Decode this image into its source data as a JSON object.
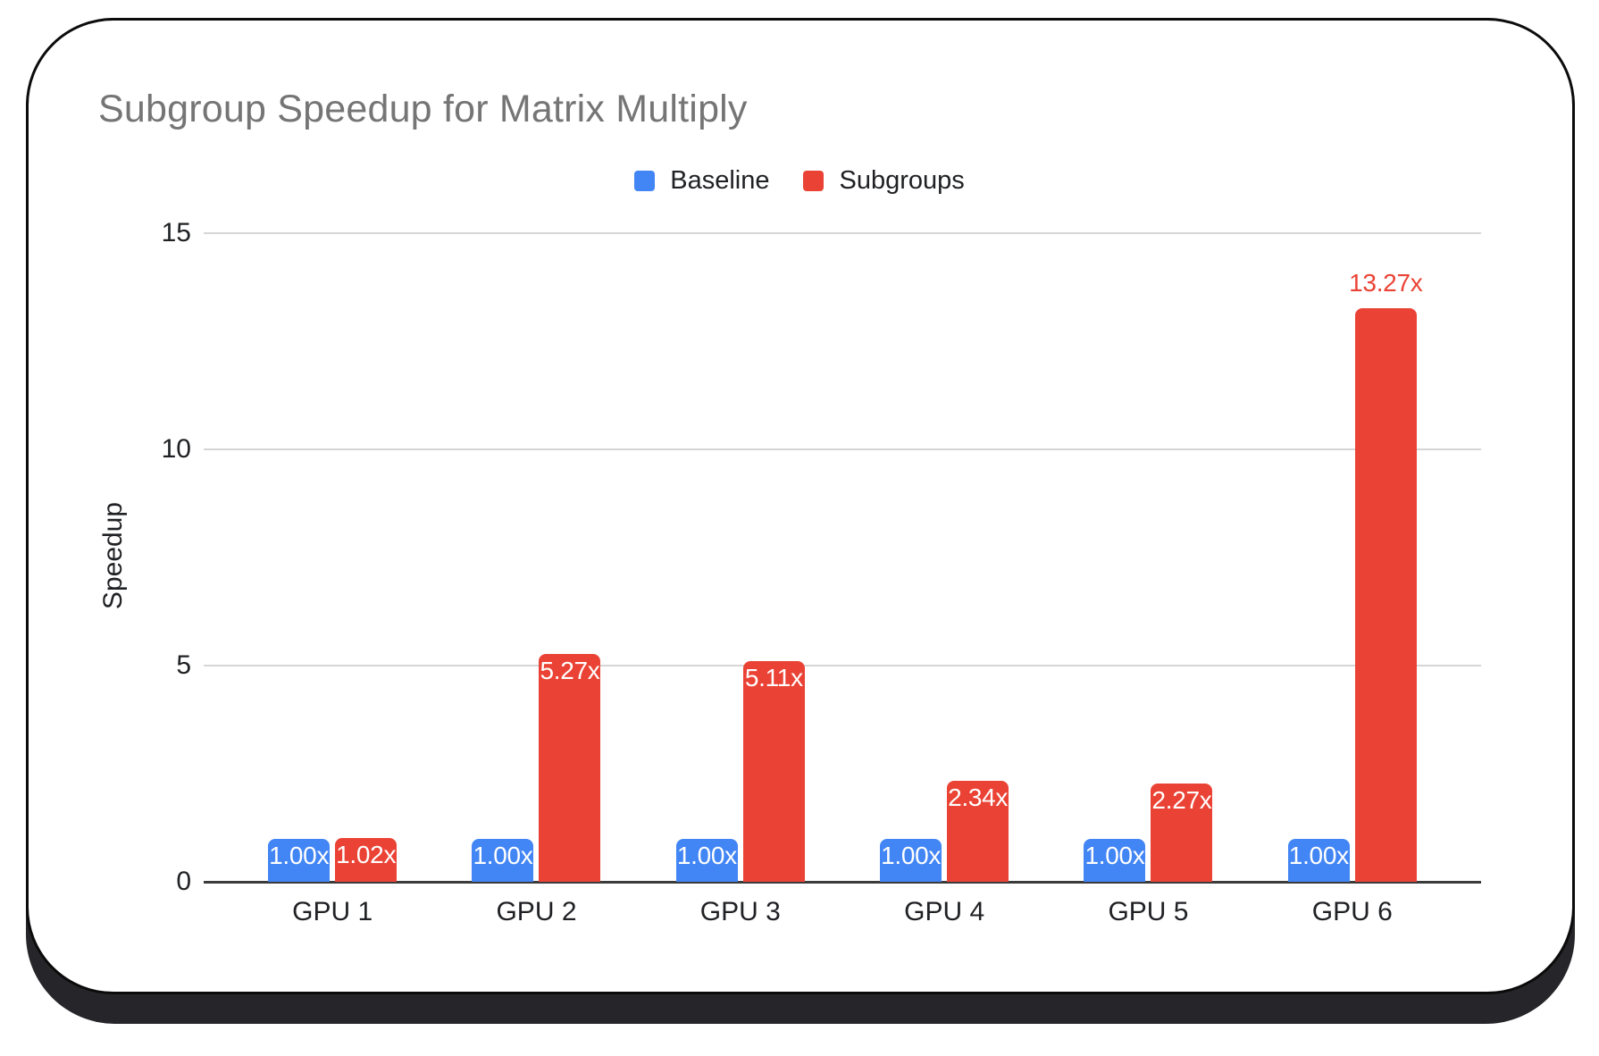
{
  "chart_data": {
    "type": "bar",
    "title": "Subgroup Speedup for Matrix Multiply",
    "ylabel": "Speedup",
    "xlabel": "",
    "categories": [
      "GPU 1",
      "GPU 2",
      "GPU 3",
      "GPU 4",
      "GPU 5",
      "GPU 6"
    ],
    "series": [
      {
        "name": "Baseline",
        "color": "#4285F4",
        "values": [
          1.0,
          1.0,
          1.0,
          1.0,
          1.0,
          1.0
        ],
        "data_labels": [
          "1.00x",
          "1.00x",
          "1.00x",
          "1.00x",
          "1.00x",
          "1.00x"
        ],
        "label_placements": [
          "inside",
          "inside",
          "inside",
          "inside",
          "inside",
          "inside"
        ]
      },
      {
        "name": "Subgroups",
        "color": "#EA4335",
        "values": [
          1.02,
          5.27,
          5.11,
          2.34,
          2.27,
          13.27
        ],
        "data_labels": [
          "1.02x",
          "5.27x",
          "5.11x",
          "2.34x",
          "2.27x",
          "13.27x"
        ],
        "label_placements": [
          "inside",
          "inside",
          "inside",
          "inside",
          "inside",
          "above"
        ]
      }
    ],
    "yticks": [
      0,
      5,
      10,
      15
    ],
    "ylim": [
      0,
      15
    ],
    "grid": true,
    "legend_position": "top",
    "colors": {
      "title_text": "#757575",
      "axis_text": "#202124",
      "gridline": "#d6d6d6",
      "axis_line": "#3b3b3b",
      "bar_label_inside": "#ffffff"
    }
  }
}
